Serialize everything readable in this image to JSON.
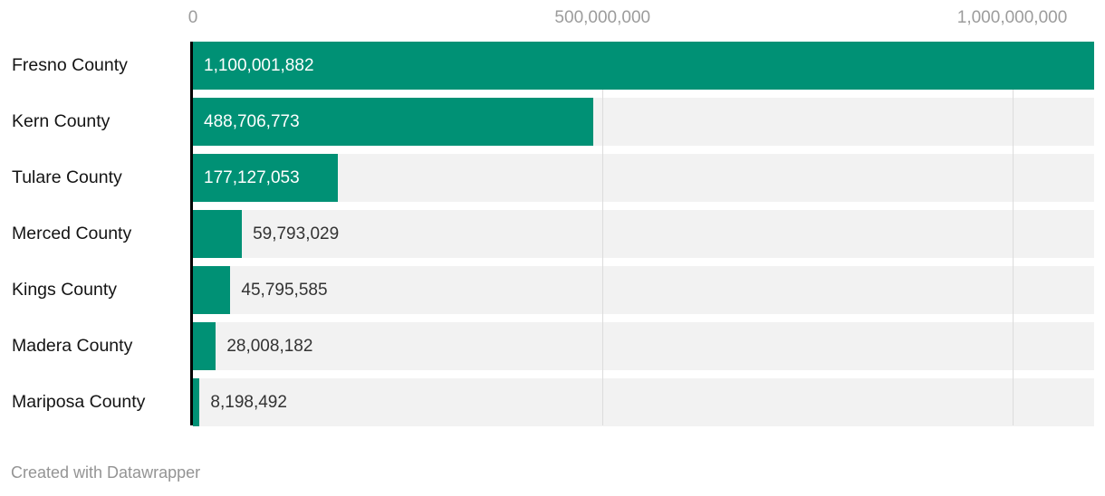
{
  "chart_data": {
    "type": "bar",
    "orientation": "horizontal",
    "categories": [
      "Fresno County",
      "Kern County",
      "Tulare County",
      "Merced County",
      "Kings County",
      "Madera County",
      "Mariposa County"
    ],
    "values": [
      1100001882,
      488706773,
      177127053,
      59793029,
      45795585,
      28008182,
      8198492
    ],
    "value_labels": [
      "1,100,001,882",
      "488,706,773",
      "177,127,053",
      "59,793,029",
      "45,795,585",
      "28,008,182",
      "8,198,492"
    ],
    "x_axis": {
      "min": 0,
      "max": 1100001882,
      "ticks": [
        0,
        500000000,
        1000000000
      ],
      "tick_labels": [
        "0",
        "500,000,000",
        "1,000,000,000"
      ]
    },
    "grid": "vertical-lines-on",
    "legend": "none",
    "title": "",
    "xlabel": "",
    "ylabel": "",
    "colors": {
      "bar": "#009175",
      "row_background": "#f2f2f2",
      "gridline": "#dcdcdc",
      "axis_line": "#000000",
      "axis_tick_text": "#9c9c9c",
      "category_text": "#141414",
      "value_inside_text": "#ffffff",
      "value_outside_text": "#333333",
      "footer_text": "#949494"
    }
  },
  "footer": {
    "credit": "Created with Datawrapper"
  }
}
